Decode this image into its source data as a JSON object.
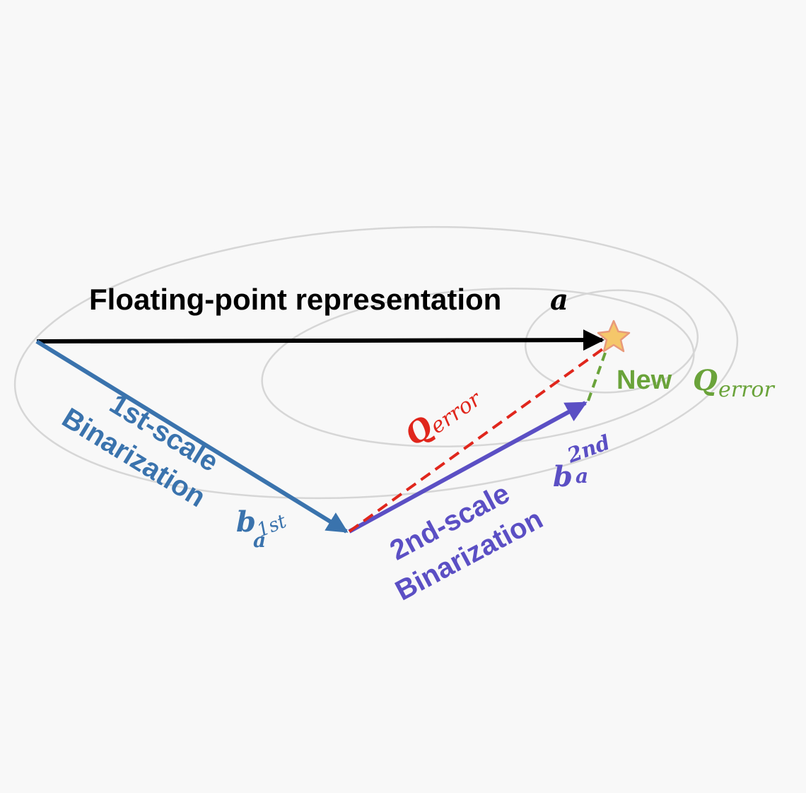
{
  "diagram": {
    "title_text": "Floating-point representation",
    "title_symbol": "a",
    "first_scale": {
      "line1": "1st-scale",
      "line2": "Binarization",
      "symbol_base": "b",
      "symbol_sub": "a",
      "symbol_sup": "1st"
    },
    "second_scale": {
      "line1": "2nd-scale",
      "line2": "Binarization",
      "symbol_base": "b",
      "symbol_sub": "a",
      "symbol_sup": "2nd"
    },
    "q_error": {
      "base": "Q",
      "sub": "error"
    },
    "new_q_error": {
      "prefix": "New",
      "base": "Q",
      "sub": "error"
    }
  },
  "colors": {
    "black": "#000000",
    "blue": "#3a73ad",
    "purple": "#5b4fc4",
    "red": "#e0261c",
    "green": "#6aa33a",
    "contour": "#d6d6d6",
    "star_fill": "#f5c76a",
    "star_stroke": "#e89a7a"
  }
}
